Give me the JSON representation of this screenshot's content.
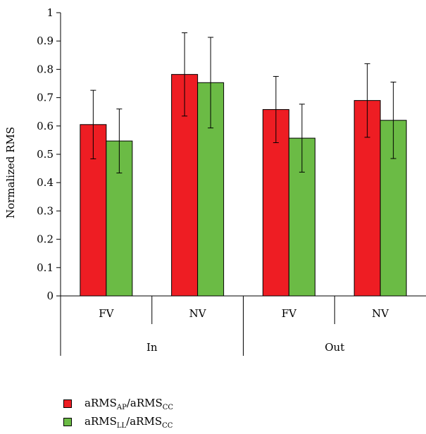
{
  "chart_data": {
    "type": "bar",
    "title": "",
    "ylabel": "Normalized RMS",
    "ylim": [
      0,
      1
    ],
    "yticks": [
      "0",
      "0.1",
      "0.2",
      "0.3",
      "0.4",
      "0.5",
      "0.6",
      "0.7",
      "0.8",
      "0.9",
      "1"
    ],
    "categories": [
      "FV",
      "NV",
      "FV",
      "NV"
    ],
    "groups": [
      "In",
      "Out"
    ],
    "series": [
      {
        "color": "#ee1d23",
        "values": [
          0.605,
          0.782,
          0.658,
          0.69
        ],
        "errors": [
          0.121,
          0.147,
          0.117,
          0.13
        ]
      },
      {
        "color": "#6bbb45",
        "values": [
          0.547,
          0.753,
          0.557,
          0.62
        ],
        "errors": [
          0.113,
          0.16,
          0.12,
          0.135
        ]
      }
    ],
    "legend": {
      "position": "bottom-left",
      "items": [
        {
          "base1": "aRMS",
          "sub1": "AP",
          "sep": "/",
          "base2": "aRMS",
          "sub2": "CC"
        },
        {
          "base1": "aRMS",
          "sub1": "LL",
          "sep": "/",
          "base2": "aRMS",
          "sub2": "CC"
        }
      ]
    }
  }
}
